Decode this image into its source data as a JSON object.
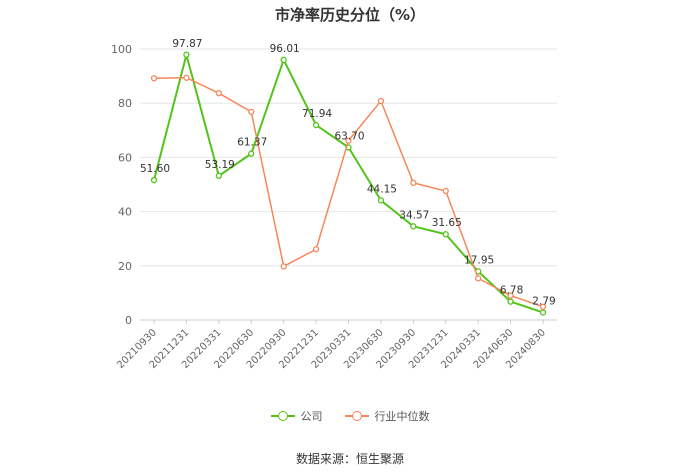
{
  "chart_data": {
    "type": "line",
    "title": "市净率历史分位（%）",
    "categories": [
      "20210930",
      "20211231",
      "20220331",
      "20220630",
      "20220930",
      "20221231",
      "20230331",
      "20230630",
      "20230930",
      "20231231",
      "20240331",
      "20240630",
      "20240830"
    ],
    "ylim": [
      0,
      100
    ],
    "yticks": [
      0,
      20,
      40,
      60,
      80,
      100
    ],
    "grid": true,
    "legend": "bottom",
    "series": [
      {
        "name": "公司",
        "color": "#52c41a",
        "values": [
          51.6,
          97.87,
          53.19,
          61.37,
          96.01,
          71.94,
          63.7,
          44.15,
          34.57,
          31.65,
          17.95,
          6.78,
          2.79
        ],
        "labels": [
          "51.60",
          "97.87",
          "53.19",
          "61.37",
          "96.01",
          "71.94",
          "63.70",
          "44.15",
          "34.57",
          "31.65",
          "17.95",
          "6.78",
          "2.79"
        ]
      },
      {
        "name": "行业中位数",
        "color": "#f5875a",
        "values": [
          89.2,
          89.4,
          83.7,
          76.8,
          19.8,
          26.1,
          66.2,
          80.8,
          50.6,
          47.6,
          15.4,
          9.0,
          4.9
        ]
      }
    ]
  },
  "source": "数据来源：恒生聚源"
}
